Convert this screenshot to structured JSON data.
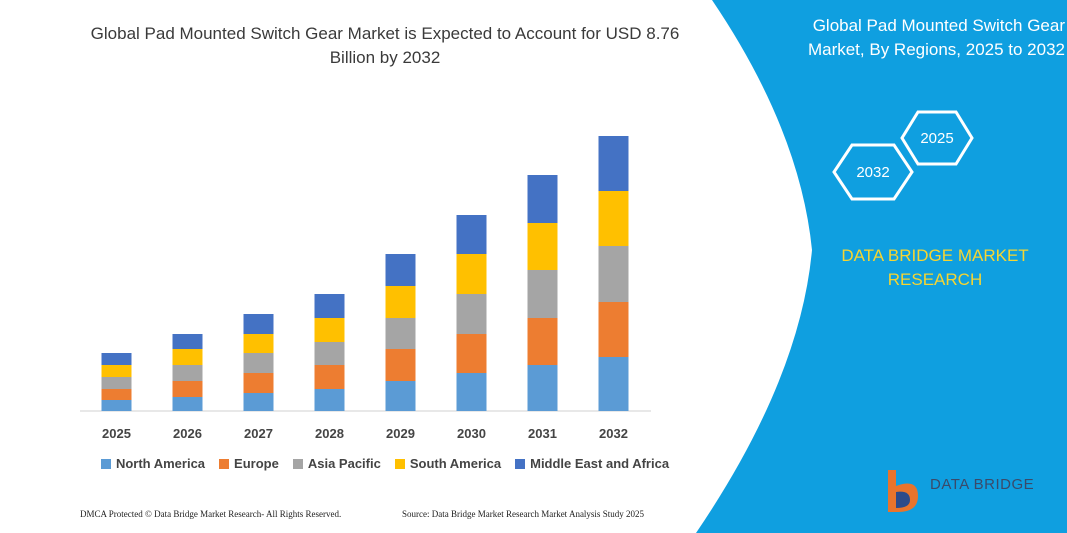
{
  "chart_data": {
    "type": "stacked-bar",
    "title": "Global Pad Mounted Switch Gear Market is Expected to Account for USD 8.76 Billion by 2032",
    "categories": [
      "2025",
      "2026",
      "2027",
      "2028",
      "2029",
      "2030",
      "2031",
      "2032"
    ],
    "series": [
      {
        "name": "North America",
        "color": "#5b9bd5",
        "values": [
          11,
          14,
          18,
          22,
          30,
          38,
          46,
          54
        ]
      },
      {
        "name": "Europe",
        "color": "#ed7d31",
        "values": [
          11,
          16,
          20,
          24,
          32,
          39,
          47,
          55
        ]
      },
      {
        "name": "Asia Pacific",
        "color": "#a5a5a5",
        "values": [
          12,
          16,
          20,
          23,
          31,
          40,
          48,
          56
        ]
      },
      {
        "name": "South America",
        "color": "#ffc000",
        "values": [
          12,
          16,
          19,
          24,
          32,
          40,
          47,
          55
        ]
      },
      {
        "name": "Middle East and Africa",
        "color": "#4472c4",
        "values": [
          12,
          15,
          20,
          24,
          32,
          39,
          48,
          55
        ]
      }
    ]
  },
  "panel": {
    "title": "Global Pad Mounted Switch Gear Market, By Regions, 2025 to 2032",
    "hexagons": [
      "2025",
      "2032"
    ],
    "brand": "DATA BRIDGE MARKET RESEARCH"
  },
  "logo": "DATA BRIDGE",
  "footer": {
    "left": "DMCA Protected © Data Bridge Market Research- All Rights Reserved.",
    "right": "Source: Data Bridge Market Research Market Analysis Study 2025"
  }
}
